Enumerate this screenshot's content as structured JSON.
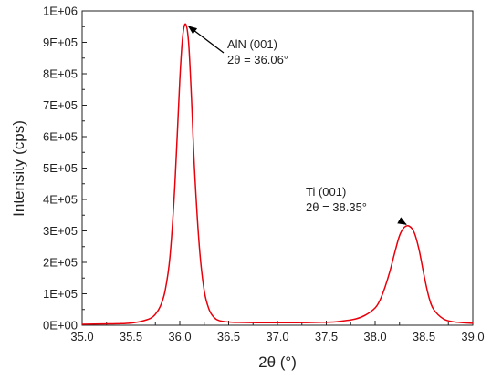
{
  "chart_data": {
    "type": "line",
    "title": "",
    "xlabel": "2θ (°)",
    "ylabel": "Intensity (cps)",
    "xlim": [
      35.0,
      39.0
    ],
    "ylim": [
      0,
      1000000
    ],
    "x_ticks": [
      35.0,
      35.5,
      36.0,
      36.5,
      37.0,
      37.5,
      38.0,
      38.5,
      39.0
    ],
    "x_tick_labels": [
      "35.0",
      "35.5",
      "36.0",
      "36.5",
      "37.0",
      "37.5",
      "38.0",
      "38.5",
      "39.0"
    ],
    "y_ticks": [
      0,
      100000,
      200000,
      300000,
      400000,
      500000,
      600000,
      700000,
      800000,
      900000,
      1000000
    ],
    "y_tick_labels": [
      "0E+00",
      "1E+05",
      "2E+05",
      "3E+05",
      "4E+05",
      "5E+05",
      "6E+05",
      "7E+05",
      "8E+05",
      "9E+05",
      "1E+06"
    ],
    "grid": false,
    "legend": "none",
    "series": [
      {
        "color": "#e8000b",
        "x": [
          35.0,
          35.2,
          35.4,
          35.5,
          35.6,
          35.7,
          35.75,
          35.8,
          35.85,
          35.9,
          35.95,
          36.0,
          36.03,
          36.06,
          36.09,
          36.12,
          36.15,
          36.2,
          36.25,
          36.3,
          36.35,
          36.4,
          36.5,
          36.6,
          36.8,
          37.0,
          37.2,
          37.4,
          37.6,
          37.8,
          37.9,
          38.0,
          38.05,
          38.1,
          38.15,
          38.2,
          38.25,
          38.3,
          38.35,
          38.4,
          38.45,
          38.5,
          38.55,
          38.6,
          38.7,
          38.8,
          38.9,
          39.0
        ],
        "y": [
          3000,
          4000,
          5000,
          7000,
          12000,
          22000,
          35000,
          60000,
          110000,
          220000,
          450000,
          780000,
          920000,
          958000,
          900000,
          720000,
          500000,
          250000,
          110000,
          50000,
          25000,
          15000,
          10000,
          9000,
          8000,
          8000,
          8000,
          9000,
          11000,
          20000,
          32000,
          55000,
          80000,
          120000,
          170000,
          230000,
          285000,
          312000,
          315000,
          295000,
          240000,
          160000,
          90000,
          50000,
          20000,
          11000,
          8000,
          6000
        ]
      }
    ],
    "annotations": [
      {
        "lines": [
          "AlN (001)",
          "2θ = 36.06°"
        ],
        "x": 36.06,
        "y": 958000
      },
      {
        "lines": [
          "Ti (001)",
          "2θ = 38.35°"
        ],
        "x": 38.35,
        "y": 315000
      }
    ]
  }
}
